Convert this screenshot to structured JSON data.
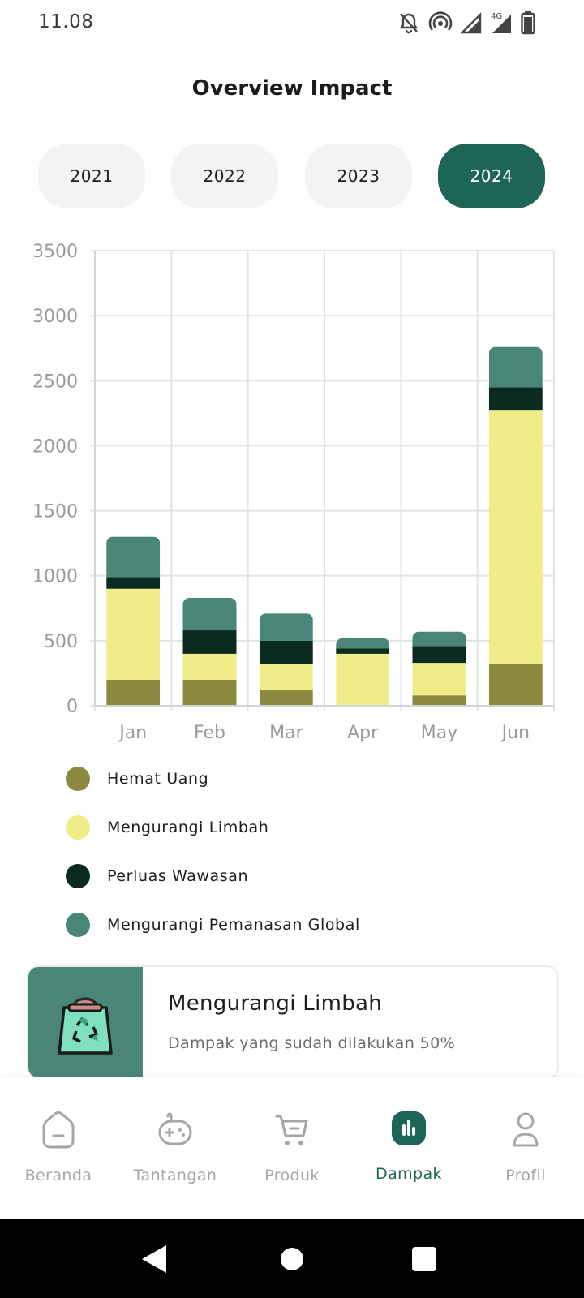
{
  "status_bar": {
    "time": "11.08",
    "icons": [
      "notifications-off-icon",
      "hotspot-icon",
      "signal-icon",
      "signal-4g-icon",
      "battery-icon"
    ],
    "network_label": "4G"
  },
  "page": {
    "title": "Overview Impact"
  },
  "year_tabs": [
    {
      "label": "2021",
      "active": false
    },
    {
      "label": "2022",
      "active": false
    },
    {
      "label": "2023",
      "active": false
    },
    {
      "label": "2024",
      "active": true
    }
  ],
  "colors": {
    "accent": "#1d6657",
    "hemat_uang": "#8c8a3e",
    "mengurangi_limbah": "#f0ed88",
    "perluas_wawasan": "#0b2a22",
    "pemanasan_global": "#4a8677",
    "grid": "#dfe5e5",
    "axis_text": "#9a9a9a"
  },
  "chart_data": {
    "type": "bar",
    "stacked": true,
    "categories": [
      "Jan",
      "Feb",
      "Mar",
      "Apr",
      "May",
      "Jun"
    ],
    "series": [
      {
        "name": "Hemat Uang",
        "color": "#8c8a3e",
        "values": [
          200,
          200,
          120,
          0,
          80,
          320
        ]
      },
      {
        "name": "Mengurangi Limbah",
        "color": "#f0ed88",
        "values": [
          700,
          200,
          200,
          400,
          250,
          1950
        ]
      },
      {
        "name": "Perluas Wawasan",
        "color": "#0b2a22",
        "values": [
          90,
          180,
          180,
          40,
          130,
          180
        ]
      },
      {
        "name": "Mengurangi Pemanasan Global",
        "color": "#4a8677",
        "values": [
          310,
          250,
          210,
          80,
          110,
          310
        ]
      }
    ],
    "ylim": [
      0,
      3500
    ],
    "yticks": [
      "0",
      "500",
      "1000",
      "1500",
      "2000",
      "2500",
      "3000",
      "3500"
    ],
    "grid": true,
    "legend_position": "bottom"
  },
  "legend": [
    {
      "label": "Hemat Uang",
      "color": "#8c8a3e"
    },
    {
      "label": "Mengurangi Limbah",
      "color": "#f0ed88"
    },
    {
      "label": "Perluas Wawasan",
      "color": "#0b2a22"
    },
    {
      "label": "Mengurangi Pemanasan Global",
      "color": "#4a8677"
    }
  ],
  "impact_card": {
    "title": "Mengurangi Limbah",
    "subtitle": "Dampak yang sudah dilakukan 50%",
    "progress_percent": 50,
    "icon": "recycle-bag-icon"
  },
  "bottom_nav": [
    {
      "label": "Beranda",
      "icon": "home-icon",
      "active": false
    },
    {
      "label": "Tantangan",
      "icon": "gamepad-icon",
      "active": false
    },
    {
      "label": "Produk",
      "icon": "cart-icon",
      "active": false
    },
    {
      "label": "Dampak",
      "icon": "bar-chart-icon",
      "active": true
    },
    {
      "label": "Profil",
      "icon": "person-icon",
      "active": false
    }
  ],
  "system_nav": [
    "back-icon",
    "home-circle-icon",
    "recents-icon"
  ]
}
